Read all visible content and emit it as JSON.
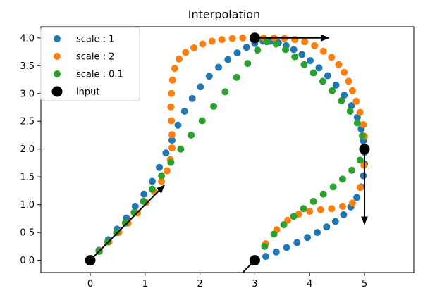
{
  "chart_data": {
    "type": "scatter",
    "title": "Interpolation",
    "xlabel": "",
    "ylabel": "",
    "xlim": [
      -0.9,
      5.9
    ],
    "ylim": [
      -0.22,
      4.2
    ],
    "xticks": [
      0,
      1,
      2,
      3,
      4,
      5
    ],
    "yticks": [
      0.0,
      0.5,
      1.0,
      1.5,
      2.0,
      2.5,
      3.0,
      3.5,
      4.0
    ],
    "yticklabels": [
      "0.0",
      "0.5",
      "1.0",
      "1.5",
      "2.0",
      "2.5",
      "3.0",
      "3.5",
      "4.0"
    ],
    "grid": false,
    "legend": "upper-left",
    "series": [
      {
        "name": "scale : 1",
        "color": "#1f77b4",
        "x": [
          0.0,
          0.16,
          0.33,
          0.49,
          0.66,
          0.82,
          0.98,
          1.13,
          1.26,
          1.38,
          1.49,
          1.6,
          1.72,
          1.86,
          2.01,
          2.17,
          2.34,
          2.51,
          2.68,
          2.85,
          3.0,
          3.15,
          3.29,
          3.43,
          3.57,
          3.71,
          3.86,
          4.01,
          4.17,
          4.33,
          4.48,
          4.63,
          4.76,
          4.87,
          4.94,
          4.98,
          5.0,
          5.0,
          4.98,
          4.94,
          4.86,
          4.75,
          4.62,
          4.47,
          4.31,
          4.14,
          3.96,
          3.77,
          3.58,
          3.39,
          3.2,
          3.0
        ],
        "y": [
          0.0,
          0.18,
          0.37,
          0.56,
          0.76,
          0.97,
          1.19,
          1.42,
          1.67,
          1.93,
          2.16,
          2.43,
          2.68,
          2.91,
          3.12,
          3.31,
          3.47,
          3.61,
          3.73,
          3.83,
          3.9,
          3.94,
          3.94,
          3.91,
          3.86,
          3.79,
          3.7,
          3.59,
          3.46,
          3.32,
          3.15,
          2.97,
          2.78,
          2.57,
          2.36,
          2.15,
          1.94,
          1.73,
          1.52,
          1.32,
          1.13,
          0.96,
          0.82,
          0.7,
          0.6,
          0.5,
          0.41,
          0.32,
          0.23,
          0.15,
          0.07,
          0.0
        ]
      },
      {
        "name": "scale : 2",
        "color": "#ff7f0e",
        "x": [
          0.0,
          0.17,
          0.34,
          0.52,
          0.69,
          0.86,
          1.02,
          1.17,
          1.3,
          1.4,
          1.46,
          1.49,
          1.49,
          1.48,
          1.47,
          1.48,
          1.5,
          1.54,
          1.62,
          1.74,
          1.89,
          2.05,
          2.22,
          2.4,
          2.59,
          2.78,
          2.97,
          3.16,
          3.35,
          3.54,
          3.73,
          3.91,
          4.09,
          4.25,
          4.4,
          4.53,
          4.63,
          4.71,
          4.78,
          4.85,
          4.92,
          4.98,
          5.0,
          5.0,
          4.99,
          4.92,
          4.78,
          4.6,
          4.4,
          4.2,
          4.0,
          3.8,
          3.6,
          3.4,
          3.2,
          3.0
        ],
        "y": [
          0.0,
          0.17,
          0.33,
          0.5,
          0.67,
          0.85,
          1.04,
          1.23,
          1.42,
          1.61,
          1.81,
          2.02,
          2.26,
          2.51,
          2.76,
          3.0,
          3.24,
          3.45,
          3.62,
          3.74,
          3.82,
          3.89,
          3.94,
          3.97,
          3.99,
          4.0,
          4.0,
          4.0,
          4.0,
          3.99,
          3.97,
          3.93,
          3.86,
          3.76,
          3.65,
          3.52,
          3.38,
          3.22,
          3.05,
          2.86,
          2.66,
          2.44,
          2.23,
          2.0,
          1.71,
          1.31,
          1.03,
          0.97,
          0.93,
          0.91,
          0.88,
          0.83,
          0.72,
          0.55,
          0.3,
          0.0
        ]
      },
      {
        "name": "scale : 0.1",
        "color": "#2ca02c",
        "x": [
          0.0,
          0.16,
          0.32,
          0.48,
          0.64,
          0.8,
          0.97,
          1.13,
          1.3,
          1.47,
          1.65,
          1.84,
          2.04,
          2.25,
          2.46,
          2.67,
          2.87,
          3.05,
          3.22,
          3.39,
          3.56,
          3.73,
          3.9,
          4.07,
          4.24,
          4.41,
          4.58,
          4.74,
          4.87,
          4.96,
          5.0,
          4.92,
          4.77,
          4.6,
          4.43,
          4.25,
          4.07,
          3.89,
          3.71,
          3.53,
          3.35,
          3.18,
          3.0
        ],
        "y": [
          0.0,
          0.16,
          0.33,
          0.5,
          0.67,
          0.86,
          1.06,
          1.28,
          1.52,
          1.76,
          2.0,
          2.25,
          2.51,
          2.77,
          3.03,
          3.29,
          3.54,
          3.78,
          3.93,
          3.89,
          3.79,
          3.66,
          3.52,
          3.37,
          3.22,
          3.05,
          2.87,
          2.68,
          2.47,
          2.24,
          2.0,
          1.8,
          1.62,
          1.46,
          1.32,
          1.19,
          1.06,
          0.93,
          0.79,
          0.64,
          0.47,
          0.25,
          0.0
        ]
      }
    ],
    "input_points": {
      "name": "input",
      "color": "#000000",
      "x": [
        0,
        3,
        5,
        3
      ],
      "y": [
        0,
        4,
        2,
        0
      ]
    },
    "tangents": [
      {
        "x": 0,
        "y": 0,
        "dx": 1.35,
        "dy": 1.35
      },
      {
        "x": 3,
        "y": 4,
        "dx": 1.35,
        "dy": 0
      },
      {
        "x": 5,
        "y": 2,
        "dx": 0,
        "dy": -1.35
      },
      {
        "x": 3,
        "y": 0,
        "dx": -0.35,
        "dy": -0.35
      }
    ]
  }
}
